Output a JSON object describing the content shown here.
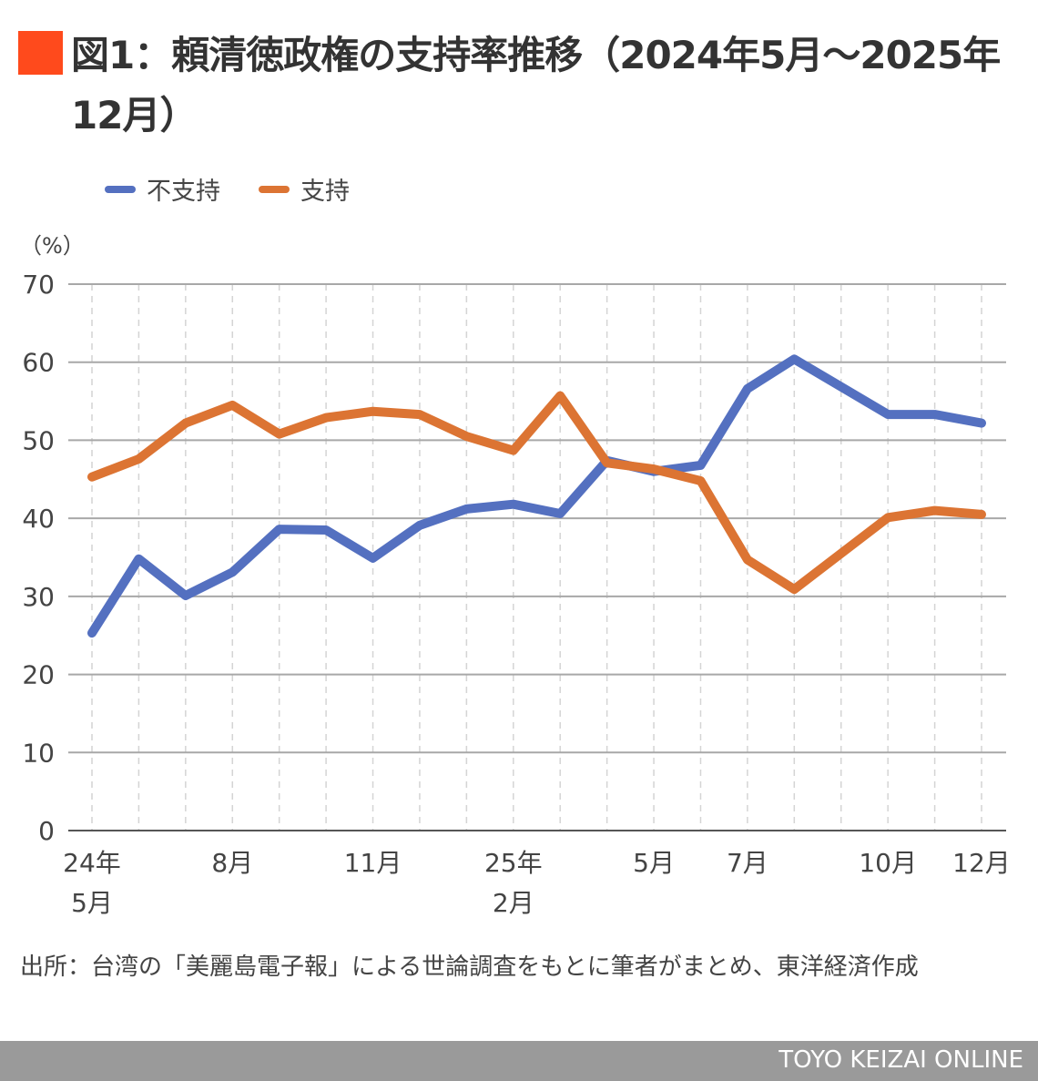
{
  "title": "図1：頼清徳政権の支持率推移（2024年5月〜2025年12月）",
  "accent_color": "#ff4a1c",
  "legend": [
    {
      "label": "不支持",
      "color": "#5470c0"
    },
    {
      "label": "支持",
      "color": "#dc7433"
    }
  ],
  "unit_label": "（%）",
  "source": "出所：台湾の「美麗島電子報」による世論調査をもとに筆者がまとめ、東洋経済作成",
  "footer": "TOYO KEIZAI ONLINE",
  "chart_data": {
    "type": "line",
    "title": "図1：頼清徳政権の支持率推移（2024年5月〜2025年12月）",
    "ylabel": "（%）",
    "ylim": [
      0,
      70
    ],
    "yticks": [
      0,
      10,
      20,
      30,
      40,
      50,
      60,
      70
    ],
    "grid": true,
    "legend_position": "top-left",
    "x": [
      "2024-05",
      "2024-06",
      "2024-07",
      "2024-08",
      "2024-09",
      "2024-10",
      "2024-11",
      "2024-12",
      "2025-01",
      "2025-02",
      "2025-03",
      "2025-04",
      "2025-05",
      "2025-06",
      "2025-07",
      "2025-08",
      "2025-09",
      "2025-10",
      "2025-11",
      "2025-12"
    ],
    "xtick_labels": [
      {
        "index": 0,
        "lines": [
          "24年",
          "5月"
        ]
      },
      {
        "index": 3,
        "lines": [
          "8月"
        ]
      },
      {
        "index": 6,
        "lines": [
          "11月"
        ]
      },
      {
        "index": 9,
        "lines": [
          "25年",
          "2月"
        ]
      },
      {
        "index": 12,
        "lines": [
          "5月"
        ]
      },
      {
        "index": 14,
        "lines": [
          "7月"
        ]
      },
      {
        "index": 17,
        "lines": [
          "10月"
        ]
      },
      {
        "index": 19,
        "lines": [
          "12月"
        ]
      }
    ],
    "series": [
      {
        "name": "不支持",
        "color": "#5470c0",
        "values": [
          25.3,
          34.8,
          30.1,
          33.1,
          38.6,
          38.5,
          34.9,
          39.1,
          41.2,
          41.8,
          40.6,
          47.4,
          46.0,
          46.8,
          56.6,
          60.4,
          null,
          53.3,
          53.3,
          52.2
        ]
      },
      {
        "name": "支持",
        "color": "#dc7433",
        "values": [
          45.3,
          47.6,
          52.2,
          54.5,
          50.8,
          52.9,
          53.7,
          53.3,
          50.5,
          48.7,
          55.7,
          47.1,
          46.3,
          44.8,
          34.7,
          30.9,
          null,
          40.1,
          41.0,
          40.5
        ]
      }
    ]
  }
}
